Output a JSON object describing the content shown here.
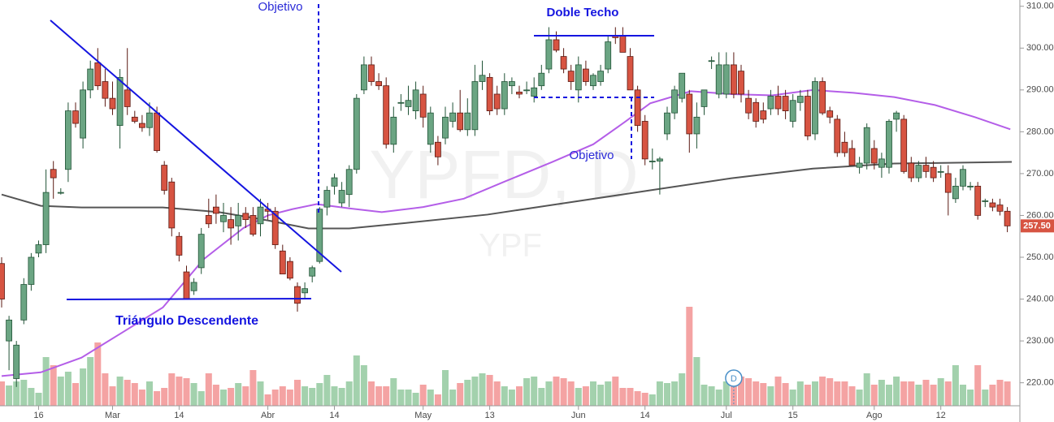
{
  "chart_data": {
    "type": "candlestick",
    "watermark": "YPFD, D",
    "watermark_sub": "YPF",
    "ylim": [
      214.5,
      311.5
    ],
    "yticks": [
      {
        "value": 220,
        "label": "220.00"
      },
      {
        "value": 230,
        "label": "230.00"
      },
      {
        "value": 240,
        "label": "240.00"
      },
      {
        "value": 250,
        "label": "250.00"
      },
      {
        "value": 260,
        "label": "260.00"
      },
      {
        "value": 270,
        "label": "270.00"
      },
      {
        "value": 280,
        "label": "280.00"
      },
      {
        "value": 290,
        "label": "290.00"
      },
      {
        "value": 300,
        "label": "300.00"
      },
      {
        "value": 310,
        "label": "310.00"
      }
    ],
    "xticks": [
      {
        "value": 5,
        "label": "16"
      },
      {
        "value": 15,
        "label": "Mar"
      },
      {
        "value": 24,
        "label": "14"
      },
      {
        "value": 36,
        "label": "Abr"
      },
      {
        "value": 45,
        "label": "14"
      },
      {
        "value": 57,
        "label": "May"
      },
      {
        "value": 66,
        "label": "13"
      },
      {
        "value": 78,
        "label": "Jun"
      },
      {
        "value": 87,
        "label": "14"
      },
      {
        "value": 98,
        "label": "Jul"
      },
      {
        "value": 107,
        "label": "15"
      },
      {
        "value": 118,
        "label": "Ago"
      },
      {
        "value": 127,
        "label": "12"
      }
    ],
    "up_color": "#6ba583",
    "down_color": "#d75442",
    "up_volume_color": "#a3d1ad",
    "down_volume_color": "#f4a3a3",
    "candles": [
      [
        248.5,
        250,
        238,
        240
      ],
      [
        230,
        236,
        223,
        235
      ],
      [
        221,
        230,
        219,
        229
      ],
      [
        235,
        245,
        234,
        243.5
      ],
      [
        243.5,
        251,
        242,
        250
      ],
      [
        251,
        254,
        250,
        253
      ],
      [
        253,
        271,
        251,
        265.5
      ],
      [
        271,
        273,
        264,
        269
      ],
      [
        265.5,
        266.5,
        265,
        265.5
      ],
      [
        271,
        287,
        268,
        285
      ],
      [
        285,
        287,
        281,
        282
      ],
      [
        278.5,
        292,
        276,
        290
      ],
      [
        290,
        297,
        288,
        295
      ],
      [
        296.5,
        300,
        290,
        291
      ],
      [
        292,
        295,
        286,
        288
      ],
      [
        288,
        292,
        284,
        285.5
      ],
      [
        281.5,
        295,
        276,
        293
      ],
      [
        290,
        300,
        284,
        286
      ],
      [
        283.5,
        285,
        282,
        282.5
      ],
      [
        282,
        284,
        280,
        281
      ],
      [
        281,
        287,
        279,
        284.5
      ],
      [
        284.5,
        286,
        275,
        275.5
      ],
      [
        272,
        273,
        265,
        266
      ],
      [
        268,
        269,
        255,
        257
      ],
      [
        255,
        256,
        249,
        250.5
      ],
      [
        246.5,
        248,
        240,
        240
      ],
      [
        242,
        245,
        241,
        244
      ],
      [
        247.5,
        257,
        246,
        255.5
      ],
      [
        260,
        264,
        257,
        258
      ],
      [
        262,
        265,
        258,
        260.5
      ],
      [
        258.5,
        263,
        256,
        260
      ],
      [
        259,
        262,
        253,
        257
      ],
      [
        257.5,
        263,
        254,
        260
      ],
      [
        260.5,
        262,
        257,
        259
      ],
      [
        260,
        262,
        255,
        255.5
      ],
      [
        258,
        264,
        255,
        262
      ],
      [
        261.5,
        263,
        259,
        261
      ],
      [
        261,
        262,
        252,
        253
      ],
      [
        251.5,
        253,
        246,
        246
      ],
      [
        249,
        250,
        244.5,
        245
      ],
      [
        243,
        244,
        237,
        239
      ],
      [
        241.5,
        244,
        240,
        242.5
      ],
      [
        245.5,
        248,
        244,
        247.5
      ],
      [
        249,
        262,
        248.5,
        261.5
      ],
      [
        262,
        267,
        260,
        266
      ],
      [
        267,
        270,
        265,
        269
      ],
      [
        263,
        268,
        262,
        266
      ],
      [
        265,
        272,
        262,
        271
      ],
      [
        271,
        289,
        270,
        288
      ],
      [
        290,
        298,
        289,
        296
      ],
      [
        296,
        298,
        291,
        292
      ],
      [
        292,
        294,
        290,
        291
      ],
      [
        291,
        293,
        276,
        277
      ],
      [
        277,
        286,
        275,
        283.5
      ],
      [
        287,
        289,
        285,
        287
      ],
      [
        286,
        291,
        284,
        287.5
      ],
      [
        285,
        292,
        283,
        290
      ],
      [
        289,
        291,
        281,
        283.5
      ],
      [
        277,
        286,
        275,
        284.5
      ],
      [
        277.5,
        279,
        272,
        274
      ],
      [
        278.5,
        286,
        277,
        283.5
      ],
      [
        282.5,
        287,
        281,
        284.5
      ],
      [
        284.5,
        290,
        280,
        280.5
      ],
      [
        280.5,
        288,
        279,
        284.5
      ],
      [
        280.5,
        296,
        279,
        292
      ],
      [
        292,
        297,
        290,
        293.5
      ],
      [
        293,
        294,
        284,
        285
      ],
      [
        289,
        291,
        284,
        285.5
      ],
      [
        285.5,
        294,
        284,
        292
      ],
      [
        291,
        293,
        289,
        292
      ],
      [
        289.5,
        291,
        288,
        289
      ],
      [
        290,
        292,
        289,
        290
      ],
      [
        288.5,
        293,
        287,
        290.5
      ],
      [
        291,
        296,
        290,
        294
      ],
      [
        295,
        305,
        294,
        302
      ],
      [
        302,
        304,
        299,
        299.5
      ],
      [
        298,
        300,
        294,
        295
      ],
      [
        294.5,
        296,
        290,
        292
      ],
      [
        290,
        298,
        287,
        296
      ],
      [
        295,
        297,
        291,
        292
      ],
      [
        291,
        294,
        290,
        293.5
      ],
      [
        292,
        296,
        291,
        294.5
      ],
      [
        295,
        303,
        294,
        301.5
      ],
      [
        303,
        305,
        301,
        302.5
      ],
      [
        303,
        305,
        299,
        299
      ],
      [
        298,
        300,
        290,
        290
      ],
      [
        290,
        291,
        280,
        281.5
      ],
      [
        282.5,
        284,
        272,
        273.5
      ],
      [
        273,
        276,
        271,
        273
      ],
      [
        273,
        274,
        265,
        273.5
      ],
      [
        279.5,
        286,
        278,
        284.5
      ],
      [
        284.5,
        291,
        283,
        290
      ],
      [
        288,
        294,
        287,
        294
      ],
      [
        289,
        290,
        275,
        279.5
      ],
      [
        279.5,
        287,
        276,
        283.5
      ],
      [
        286,
        290,
        284,
        290
      ],
      [
        297,
        298,
        295,
        297
      ],
      [
        289,
        299,
        288,
        296
      ],
      [
        289,
        299,
        288,
        296
      ],
      [
        296,
        299,
        288,
        289
      ],
      [
        294.5,
        296,
        287,
        289
      ],
      [
        288,
        290,
        283,
        284.5
      ],
      [
        287,
        288,
        281,
        282.5
      ],
      [
        285,
        287,
        282,
        283
      ],
      [
        285.5,
        290,
        284,
        288.5
      ],
      [
        288.5,
        291,
        284,
        285.5
      ],
      [
        288.5,
        290,
        283,
        285
      ],
      [
        282.5,
        289,
        281,
        287.5
      ],
      [
        287,
        290,
        285,
        288.5
      ],
      [
        288.5,
        290,
        278,
        279
      ],
      [
        279.5,
        293,
        278,
        292
      ],
      [
        292,
        293,
        284,
        284.5
      ],
      [
        285,
        286,
        282,
        283.5
      ],
      [
        283,
        284,
        274,
        275
      ],
      [
        277.5,
        280,
        274,
        275
      ],
      [
        276,
        278,
        272,
        272
      ],
      [
        271.5,
        274,
        270,
        272.5
      ],
      [
        272.5,
        282,
        271,
        281
      ],
      [
        276,
        278,
        271,
        272.5
      ],
      [
        271.5,
        275,
        269,
        273.5
      ],
      [
        271.5,
        283,
        270,
        282.5
      ],
      [
        283,
        285,
        280,
        284.5
      ],
      [
        283,
        284,
        270,
        270.5
      ],
      [
        272.5,
        274,
        268,
        269
      ],
      [
        269,
        273,
        268,
        272
      ],
      [
        272,
        274,
        269,
        270.5
      ],
      [
        271.5,
        273,
        268,
        269
      ],
      [
        270.5,
        272,
        269,
        270.5
      ],
      [
        270,
        272,
        260,
        265.5
      ],
      [
        264,
        269,
        263,
        267
      ],
      [
        267,
        272,
        266,
        271
      ],
      [
        267,
        268,
        266,
        267
      ],
      [
        267,
        268,
        259,
        260
      ],
      [
        263.5,
        264,
        262,
        263.5
      ],
      [
        263,
        264,
        261,
        262
      ],
      [
        262.5,
        264,
        260,
        261
      ],
      [
        261,
        262,
        256,
        257.5
      ]
    ],
    "volume": [
      30,
      25,
      30,
      32,
      22,
      16,
      60,
      50,
      36,
      42,
      28,
      46,
      60,
      78,
      40,
      24,
      36,
      32,
      28,
      20,
      30,
      18,
      22,
      40,
      36,
      34,
      28,
      18,
      40,
      26,
      20,
      22,
      28,
      24,
      44,
      30,
      14,
      20,
      24,
      20,
      32,
      24,
      22,
      28,
      38,
      24,
      22,
      30,
      62,
      50,
      30,
      24,
      24,
      34,
      20,
      20,
      16,
      26,
      20,
      14,
      44,
      20,
      28,
      32,
      36,
      40,
      38,
      30,
      24,
      20,
      24,
      34,
      36,
      22,
      30,
      36,
      34,
      30,
      22,
      24,
      30,
      26,
      30,
      36,
      22,
      22,
      18,
      16,
      14,
      30,
      28,
      30,
      40,
      122,
      60,
      26,
      24,
      20,
      30,
      36,
      36,
      34,
      30,
      28,
      24,
      36,
      28,
      20,
      30,
      26,
      30,
      36,
      34,
      30,
      30,
      24,
      20,
      40,
      26,
      32,
      26,
      36,
      30,
      30,
      26,
      32,
      26,
      34,
      30,
      50,
      26,
      20,
      50,
      20,
      26,
      32,
      30
    ],
    "series": [
      {
        "color": "#b45ee8",
        "x": [
          0,
          5.3,
          10.8,
          16.3,
          21.8,
          27.3,
          32.7,
          36,
          39.3,
          42.6,
          47,
          51.4,
          57,
          62.5,
          67.9,
          74.5,
          80,
          84.4,
          87.7,
          93.2,
          98.7,
          104.2,
          109.7,
          115.2,
          120.7,
          126.2,
          131.6,
          136.4
        ],
        "values": [
          221.6,
          222.5,
          226,
          232,
          238,
          249.5,
          257,
          260,
          261.5,
          262.7,
          261.7,
          260.8,
          262,
          264,
          268,
          272.8,
          277,
          282.5,
          286.8,
          289.7,
          289,
          288.7,
          290,
          289.3,
          288.3,
          286.4,
          283.5,
          280.6
        ]
      },
      {
        "color": "#555555",
        "x": [
          0,
          5.3,
          10.8,
          21.8,
          29.4,
          36,
          41.5,
          47,
          54.7,
          65.7,
          76.7,
          87.7,
          98.7,
          109.7,
          120.7,
          136.6
        ],
        "values": [
          265,
          262.3,
          261.9,
          261.9,
          260.8,
          258.8,
          256.9,
          256.9,
          258.2,
          260.2,
          263.1,
          266,
          268.9,
          271.2,
          272.4,
          272.8
        ]
      }
    ],
    "last_price": {
      "value": 257.5,
      "label": "257.50"
    },
    "dividend": {
      "x": 99,
      "label": "D"
    },
    "annotations": {
      "triangle": "Triángulo Descendente",
      "target_1": "Objetivo",
      "double_top": "Doble Techo",
      "target_2": "Objetivo"
    }
  }
}
